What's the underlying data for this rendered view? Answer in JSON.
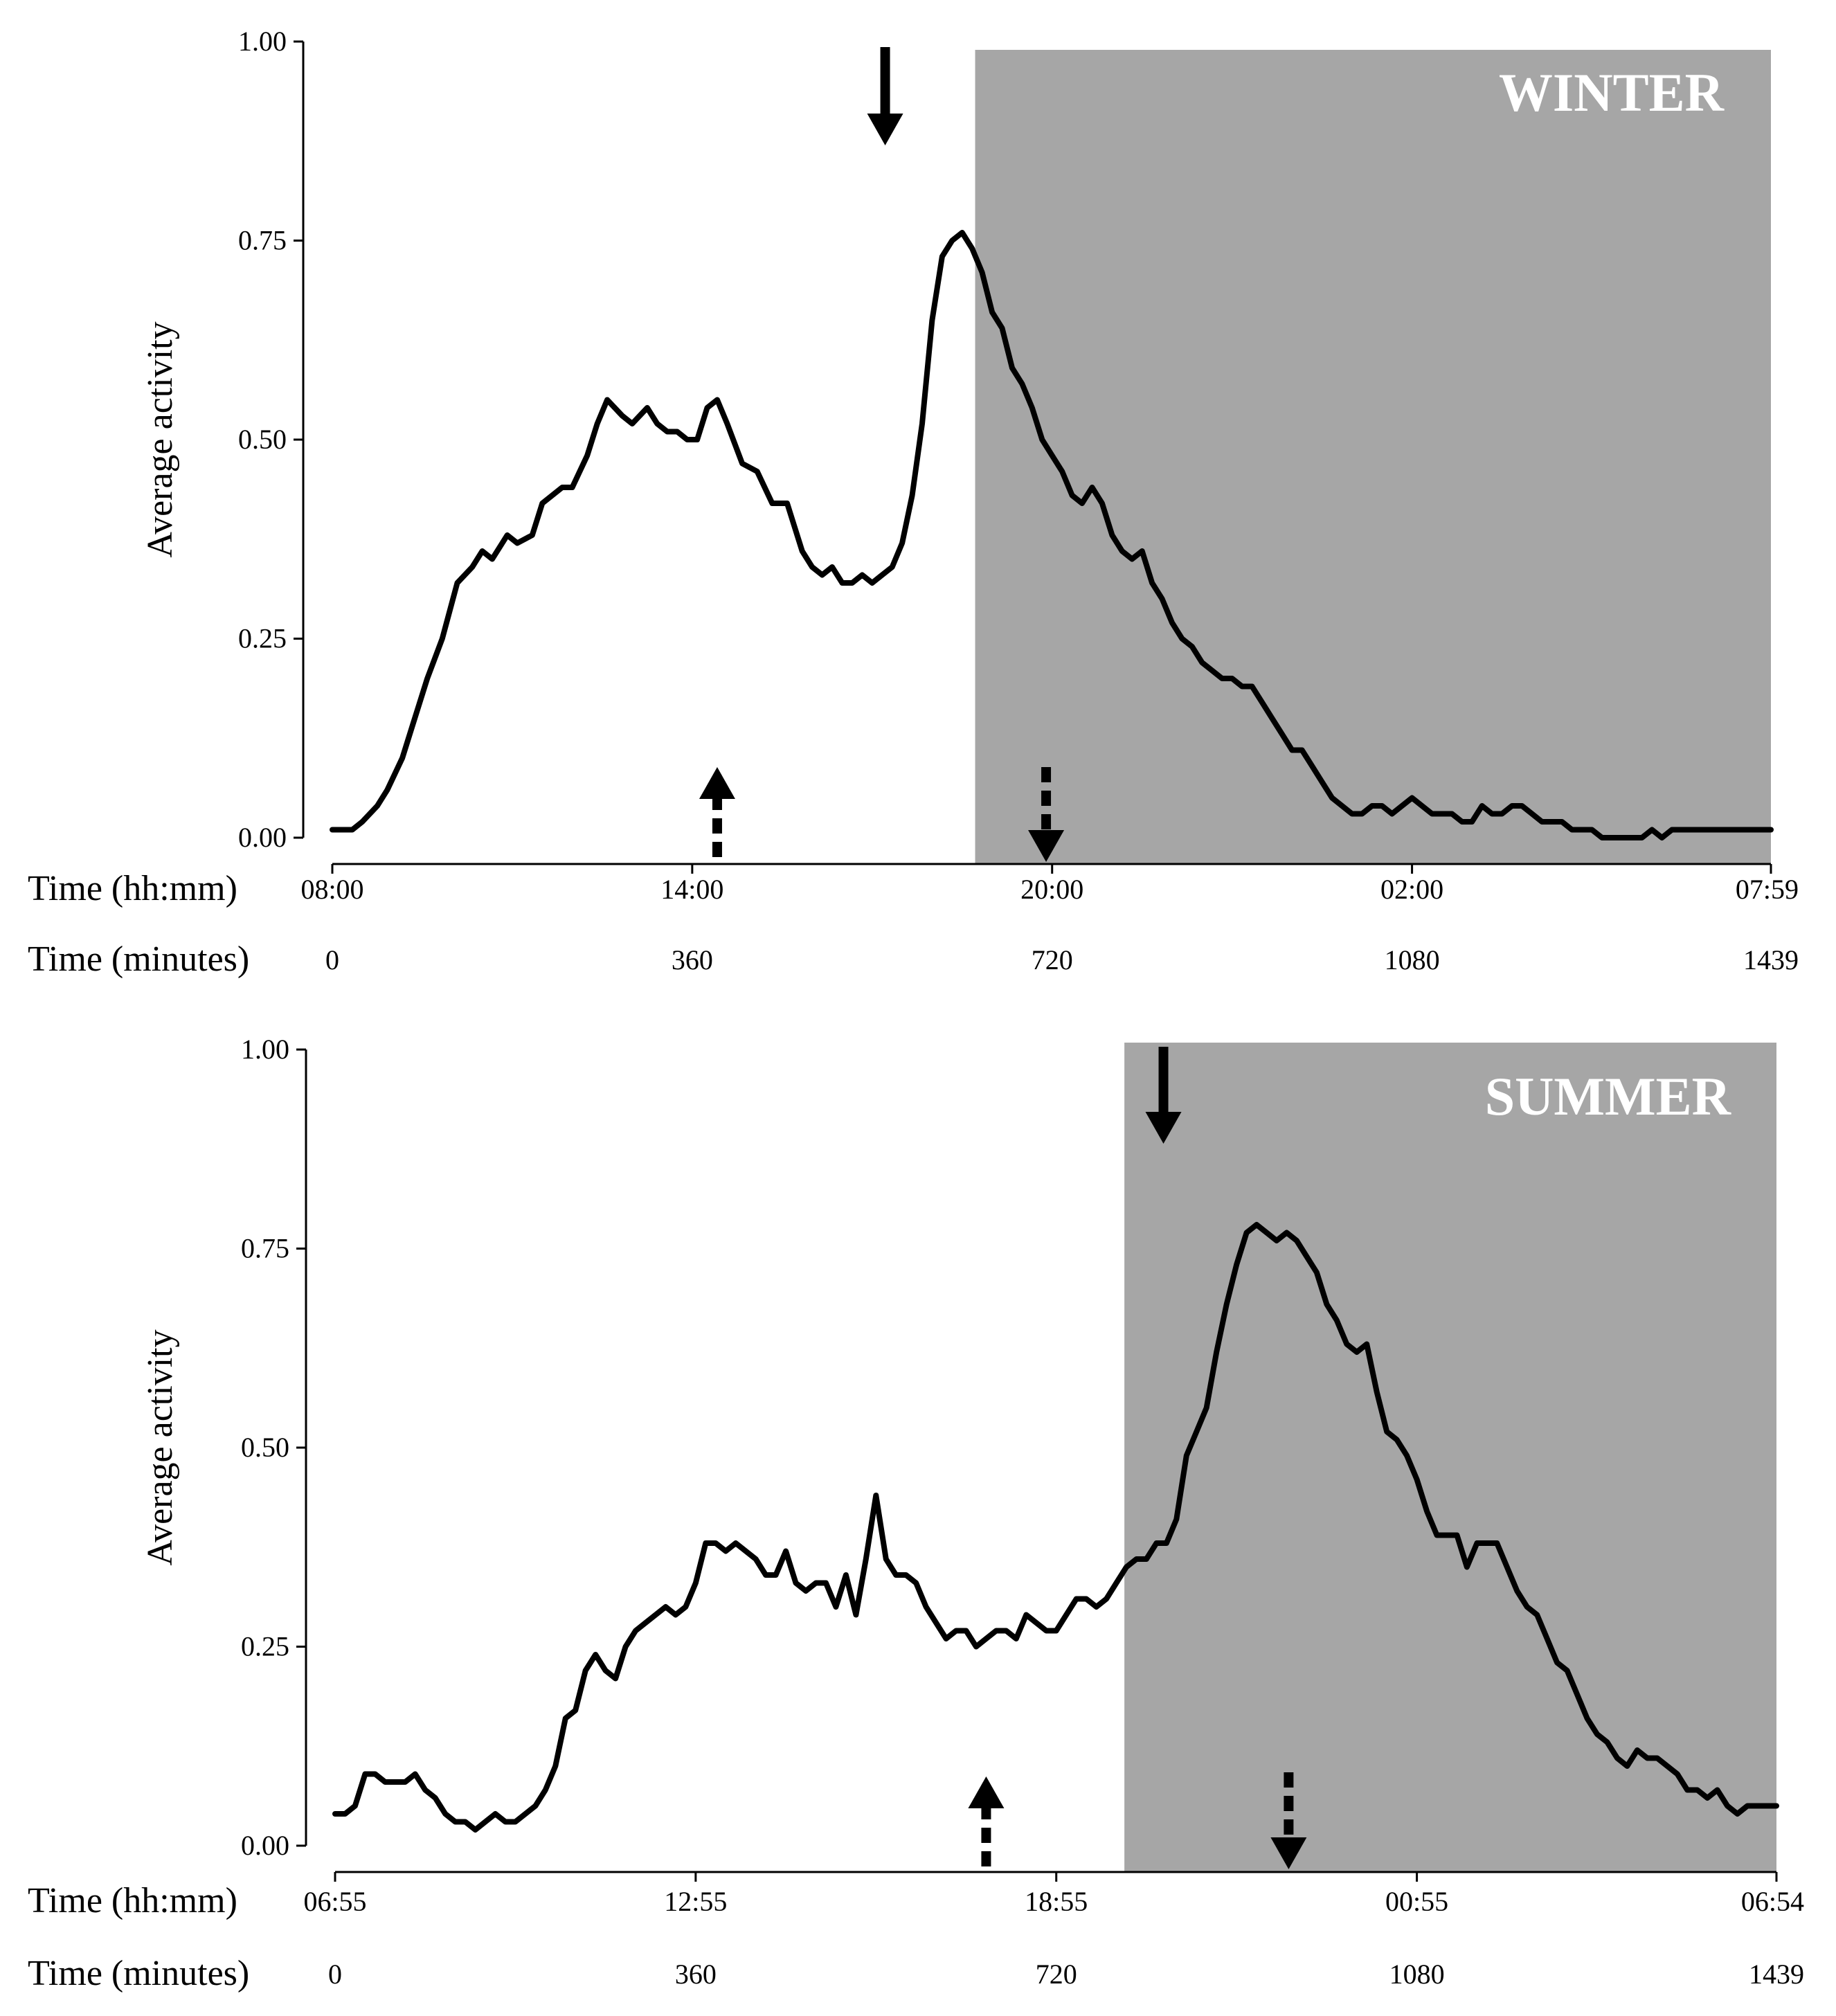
{
  "chart_data": [
    {
      "type": "line",
      "season": "WINTER",
      "ylabel": "Average activity",
      "ylim": [
        0,
        1
      ],
      "yticks": [
        "0.00",
        "0.25",
        "0.50",
        "0.75",
        "1.00"
      ],
      "xlim": [
        0,
        1439
      ],
      "x_row1_label": "Time (hh:mm)",
      "x_row2_label": "Time (minutes)",
      "x_clock_ticks": [
        {
          "minute": 0,
          "label": "08:00"
        },
        {
          "minute": 360,
          "label": "14:00"
        },
        {
          "minute": 720,
          "label": "20:00"
        },
        {
          "minute": 1080,
          "label": "02:00"
        },
        {
          "minute": 1439,
          "label": "07:59"
        }
      ],
      "x_minute_ticks": [
        {
          "minute": 0,
          "label": "0"
        },
        {
          "minute": 360,
          "label": "360"
        },
        {
          "minute": 720,
          "label": "720"
        },
        {
          "minute": 1080,
          "label": "1080"
        },
        {
          "minute": 1439,
          "label": "1439"
        }
      ],
      "dark_period": [
        643,
        1439
      ],
      "arrows": [
        {
          "kind": "solid-down",
          "minute": 553
        },
        {
          "kind": "dashed-up",
          "minute": 385
        },
        {
          "kind": "dashed-down",
          "minute": 714
        }
      ],
      "series": [
        {
          "name": "Average activity",
          "x": [
            0,
            20,
            30,
            45,
            55,
            70,
            80,
            95,
            110,
            125,
            140,
            150,
            160,
            175,
            185,
            200,
            210,
            220,
            230,
            240,
            255,
            265,
            275,
            290,
            300,
            315,
            325,
            335,
            345,
            355,
            365,
            375,
            385,
            395,
            410,
            425,
            440,
            455,
            470,
            480,
            490,
            500,
            510,
            520,
            530,
            540,
            550,
            560,
            570,
            580,
            590,
            600,
            610,
            620,
            630,
            640,
            650,
            660,
            670,
            680,
            690,
            700,
            710,
            720,
            730,
            740,
            750,
            760,
            770,
            780,
            790,
            800,
            810,
            820,
            830,
            840,
            850,
            860,
            870,
            880,
            890,
            900,
            910,
            920,
            930,
            940,
            950,
            960,
            970,
            980,
            990,
            1000,
            1010,
            1020,
            1030,
            1040,
            1050,
            1060,
            1070,
            1080,
            1090,
            1100,
            1110,
            1120,
            1130,
            1140,
            1150,
            1160,
            1170,
            1180,
            1190,
            1200,
            1210,
            1220,
            1230,
            1240,
            1250,
            1260,
            1270,
            1280,
            1290,
            1300,
            1310,
            1320,
            1330,
            1340,
            1350,
            1360,
            1370,
            1380,
            1390,
            1400,
            1410,
            1420,
            1439
          ],
          "values": [
            0.01,
            0.01,
            0.02,
            0.04,
            0.06,
            0.1,
            0.14,
            0.2,
            0.25,
            0.32,
            0.34,
            0.36,
            0.35,
            0.38,
            0.37,
            0.38,
            0.42,
            0.43,
            0.44,
            0.44,
            0.48,
            0.52,
            0.55,
            0.53,
            0.52,
            0.54,
            0.52,
            0.51,
            0.51,
            0.5,
            0.5,
            0.54,
            0.55,
            0.52,
            0.47,
            0.46,
            0.42,
            0.42,
            0.36,
            0.34,
            0.33,
            0.34,
            0.32,
            0.32,
            0.33,
            0.32,
            0.33,
            0.34,
            0.37,
            0.43,
            0.52,
            0.65,
            0.73,
            0.75,
            0.76,
            0.74,
            0.71,
            0.66,
            0.64,
            0.59,
            0.57,
            0.54,
            0.5,
            0.48,
            0.46,
            0.43,
            0.42,
            0.44,
            0.42,
            0.38,
            0.36,
            0.35,
            0.36,
            0.32,
            0.3,
            0.27,
            0.25,
            0.24,
            0.22,
            0.21,
            0.2,
            0.2,
            0.19,
            0.19,
            0.17,
            0.15,
            0.13,
            0.11,
            0.11,
            0.09,
            0.07,
            0.05,
            0.04,
            0.03,
            0.03,
            0.04,
            0.04,
            0.03,
            0.04,
            0.05,
            0.04,
            0.03,
            0.03,
            0.03,
            0.02,
            0.02,
            0.04,
            0.03,
            0.03,
            0.04,
            0.04,
            0.03,
            0.02,
            0.02,
            0.02,
            0.01,
            0.01,
            0.01,
            0.0,
            0.0,
            0.0,
            0.0,
            0.0,
            0.01,
            0.0,
            0.01,
            0.01,
            0.01,
            0.01,
            0.01,
            0.01,
            0.01,
            0.01,
            0.01,
            0.01
          ]
        }
      ]
    },
    {
      "type": "line",
      "season": "SUMMER",
      "ylabel": "Average activity",
      "ylim": [
        0,
        1
      ],
      "yticks": [
        "0.00",
        "0.25",
        "0.50",
        "0.75",
        "1.00"
      ],
      "xlim": [
        0,
        1439
      ],
      "x_row1_label": "Time (hh:mm)",
      "x_row2_label": "Time (minutes)",
      "x_clock_ticks": [
        {
          "minute": 0,
          "label": "06:55"
        },
        {
          "minute": 360,
          "label": "12:55"
        },
        {
          "minute": 720,
          "label": "18:55"
        },
        {
          "minute": 1080,
          "label": "00:55"
        },
        {
          "minute": 1439,
          "label": "06:54"
        }
      ],
      "x_minute_ticks": [
        {
          "minute": 0,
          "label": "0"
        },
        {
          "minute": 360,
          "label": "360"
        },
        {
          "minute": 720,
          "label": "720"
        },
        {
          "minute": 1080,
          "label": "1080"
        },
        {
          "minute": 1439,
          "label": "1439"
        }
      ],
      "dark_period": [
        788,
        1439
      ],
      "arrows": [
        {
          "kind": "solid-down",
          "minute": 827
        },
        {
          "kind": "dashed-up",
          "minute": 650
        },
        {
          "kind": "dashed-down",
          "minute": 952
        }
      ],
      "series": [
        {
          "name": "Average activity",
          "x": [
            0,
            10,
            20,
            30,
            40,
            50,
            60,
            70,
            80,
            90,
            100,
            110,
            120,
            130,
            140,
            150,
            160,
            170,
            180,
            190,
            200,
            210,
            220,
            230,
            240,
            250,
            260,
            270,
            280,
            290,
            300,
            310,
            320,
            330,
            340,
            350,
            360,
            370,
            380,
            390,
            400,
            410,
            420,
            430,
            440,
            450,
            460,
            470,
            480,
            490,
            500,
            510,
            520,
            530,
            540,
            550,
            560,
            570,
            580,
            590,
            600,
            610,
            620,
            630,
            640,
            650,
            660,
            670,
            680,
            690,
            700,
            710,
            720,
            730,
            740,
            750,
            760,
            770,
            780,
            790,
            800,
            810,
            820,
            830,
            840,
            850,
            860,
            870,
            880,
            890,
            900,
            910,
            920,
            930,
            940,
            950,
            960,
            970,
            980,
            990,
            1000,
            1010,
            1020,
            1030,
            1040,
            1050,
            1060,
            1070,
            1080,
            1090,
            1100,
            1110,
            1120,
            1130,
            1140,
            1150,
            1160,
            1170,
            1180,
            1190,
            1200,
            1210,
            1220,
            1230,
            1240,
            1250,
            1260,
            1270,
            1280,
            1290,
            1300,
            1310,
            1320,
            1330,
            1340,
            1350,
            1360,
            1370,
            1380,
            1390,
            1400,
            1410,
            1420,
            1430,
            1439
          ],
          "values": [
            0.04,
            0.04,
            0.05,
            0.09,
            0.09,
            0.08,
            0.08,
            0.08,
            0.09,
            0.07,
            0.06,
            0.04,
            0.03,
            0.03,
            0.02,
            0.03,
            0.04,
            0.03,
            0.03,
            0.04,
            0.05,
            0.07,
            0.1,
            0.16,
            0.17,
            0.22,
            0.24,
            0.22,
            0.21,
            0.25,
            0.27,
            0.28,
            0.29,
            0.3,
            0.29,
            0.3,
            0.33,
            0.38,
            0.38,
            0.37,
            0.38,
            0.37,
            0.36,
            0.34,
            0.34,
            0.37,
            0.33,
            0.32,
            0.33,
            0.33,
            0.3,
            0.34,
            0.29,
            0.36,
            0.44,
            0.36,
            0.34,
            0.34,
            0.33,
            0.3,
            0.28,
            0.26,
            0.27,
            0.27,
            0.25,
            0.26,
            0.27,
            0.27,
            0.26,
            0.29,
            0.28,
            0.27,
            0.27,
            0.29,
            0.31,
            0.31,
            0.3,
            0.31,
            0.33,
            0.35,
            0.36,
            0.36,
            0.38,
            0.38,
            0.41,
            0.49,
            0.52,
            0.55,
            0.62,
            0.68,
            0.73,
            0.77,
            0.78,
            0.77,
            0.76,
            0.77,
            0.76,
            0.74,
            0.72,
            0.68,
            0.66,
            0.63,
            0.62,
            0.63,
            0.57,
            0.52,
            0.51,
            0.49,
            0.46,
            0.42,
            0.39,
            0.39,
            0.39,
            0.35,
            0.38,
            0.38,
            0.38,
            0.35,
            0.32,
            0.3,
            0.29,
            0.26,
            0.23,
            0.22,
            0.19,
            0.16,
            0.14,
            0.13,
            0.11,
            0.1,
            0.12,
            0.11,
            0.11,
            0.1,
            0.09,
            0.07,
            0.07,
            0.06,
            0.07,
            0.05,
            0.04,
            0.05,
            0.05,
            0.05,
            0.05
          ]
        }
      ]
    }
  ]
}
